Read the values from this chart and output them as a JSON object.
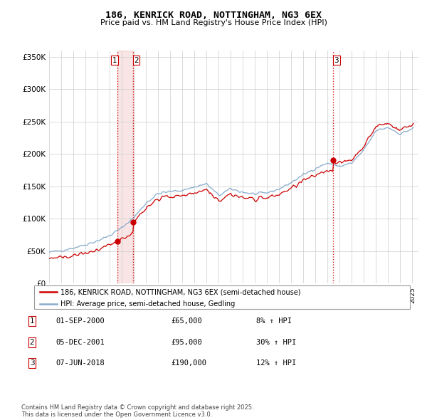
{
  "title": "186, KENRICK ROAD, NOTTINGHAM, NG3 6EX",
  "subtitle": "Price paid vs. HM Land Registry's House Price Index (HPI)",
  "xlim": [
    1995,
    2025.5
  ],
  "ylim": [
    0,
    360000
  ],
  "yticks": [
    0,
    50000,
    100000,
    150000,
    200000,
    250000,
    300000,
    350000
  ],
  "ytick_labels": [
    "£0",
    "£50K",
    "£100K",
    "£150K",
    "£200K",
    "£250K",
    "£300K",
    "£350K"
  ],
  "sales": [
    {
      "date_num": 2000.67,
      "price": 65000,
      "label": "1"
    },
    {
      "date_num": 2001.92,
      "price": 95000,
      "label": "2"
    },
    {
      "date_num": 2018.43,
      "price": 190000,
      "label": "3"
    }
  ],
  "sale_color": "#cc0000",
  "hpi_color": "#88aacc",
  "vline_color": "#cc0000",
  "vfill_alpha": 0.1,
  "grid_color": "#cccccc",
  "background_color": "#ffffff",
  "legend_entries": [
    "186, KENRICK ROAD, NOTTINGHAM, NG3 6EX (semi-detached house)",
    "HPI: Average price, semi-detached house, Gedling"
  ],
  "table_rows": [
    {
      "num": "1",
      "date": "01-SEP-2000",
      "price": "£65,000",
      "change": "8% ↑ HPI"
    },
    {
      "num": "2",
      "date": "05-DEC-2001",
      "price": "£95,000",
      "change": "30% ↑ HPI"
    },
    {
      "num": "3",
      "date": "07-JUN-2018",
      "price": "£190,000",
      "change": "12% ↑ HPI"
    }
  ],
  "footer": "Contains HM Land Registry data © Crown copyright and database right 2025.\nThis data is licensed under the Open Government Licence v3.0."
}
